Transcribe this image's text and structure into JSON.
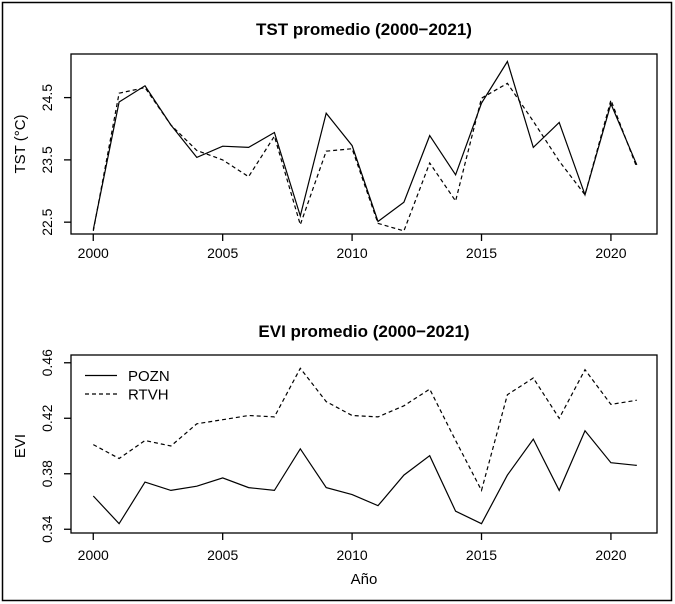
{
  "figure": {
    "background": "#ffffff"
  },
  "colors": {
    "line": "#000000",
    "border": "#000000",
    "background": "#ffffff"
  },
  "chart_data": [
    {
      "type": "line",
      "title": "TST promedio (2000−2021)",
      "xlabel": "",
      "ylabel": "TST (°C)",
      "x": [
        2000,
        2001,
        2002,
        2003,
        2004,
        2005,
        2006,
        2007,
        2008,
        2009,
        2010,
        2011,
        2012,
        2013,
        2014,
        2015,
        2016,
        2017,
        2018,
        2019,
        2020,
        2021
      ],
      "series": [
        {
          "name": "POZN",
          "style": "solid",
          "values": [
            22.38,
            24.43,
            24.69,
            24.06,
            23.54,
            23.72,
            23.7,
            23.94,
            22.6,
            24.25,
            23.73,
            22.51,
            22.82,
            23.89,
            23.26,
            24.41,
            25.08,
            23.7,
            24.1,
            22.94,
            24.4,
            23.42
          ]
        },
        {
          "name": "RTVH",
          "style": "dashed",
          "values": [
            22.36,
            24.57,
            24.66,
            24.06,
            23.65,
            23.5,
            23.23,
            23.88,
            22.46,
            23.64,
            23.68,
            22.48,
            22.36,
            23.45,
            22.84,
            24.49,
            24.73,
            24.12,
            23.48,
            22.94,
            24.46,
            23.38
          ]
        }
      ],
      "xticks": [
        2000,
        2005,
        2010,
        2015,
        2020
      ],
      "xtick_labels": [
        "2000",
        "2005",
        "2010",
        "2015",
        "2020"
      ],
      "yticks": [
        22.5,
        23.5,
        24.5
      ],
      "ytick_labels": [
        "22.5",
        "23.5",
        "24.5"
      ],
      "xlim": [
        1999.14,
        2021.78
      ],
      "ylim": [
        22.31,
        25.2
      ],
      "grid": false,
      "legend": null
    },
    {
      "type": "line",
      "title": "EVI promedio (2000−2021)",
      "xlabel": "Año",
      "ylabel": "EVI",
      "x": [
        2000,
        2001,
        2002,
        2003,
        2004,
        2005,
        2006,
        2007,
        2008,
        2009,
        2010,
        2011,
        2012,
        2013,
        2014,
        2015,
        2016,
        2017,
        2018,
        2019,
        2020,
        2021
      ],
      "series": [
        {
          "name": "POZN",
          "style": "solid",
          "values": [
            0.364,
            0.344,
            0.374,
            0.368,
            0.371,
            0.377,
            0.37,
            0.368,
            0.398,
            0.37,
            0.365,
            0.357,
            0.379,
            0.393,
            0.353,
            0.344,
            0.379,
            0.405,
            0.368,
            0.411,
            0.388,
            0.386
          ]
        },
        {
          "name": "RTVH",
          "style": "dashed",
          "values": [
            0.401,
            0.391,
            0.404,
            0.4,
            0.416,
            0.419,
            0.422,
            0.421,
            0.456,
            0.432,
            0.422,
            0.421,
            0.429,
            0.441,
            0.404,
            0.368,
            0.437,
            0.449,
            0.42,
            0.455,
            0.43,
            0.433
          ]
        }
      ],
      "xticks": [
        2000,
        2005,
        2010,
        2015,
        2020
      ],
      "xtick_labels": [
        "2000",
        "2005",
        "2010",
        "2015",
        "2020"
      ],
      "yticks": [
        0.34,
        0.38,
        0.42,
        0.46
      ],
      "ytick_labels": [
        "0.34",
        "0.38",
        "0.42",
        "0.46"
      ],
      "xlim": [
        1999.14,
        2021.78
      ],
      "ylim": [
        0.3373,
        0.4656
      ],
      "grid": false,
      "legend": {
        "position": "topleft",
        "entries": [
          "POZN",
          "RTVH"
        ]
      }
    }
  ]
}
